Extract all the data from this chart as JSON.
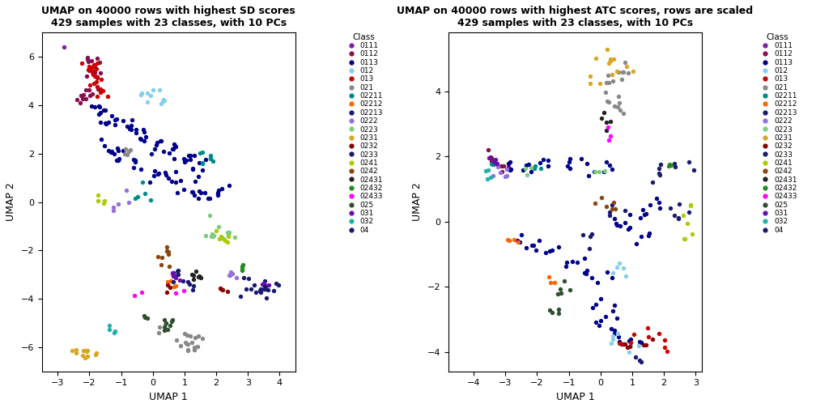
{
  "title1": "UMAP on 40000 rows with highest SD scores\n429 samples with 23 classes, with 10 PCs",
  "title2": "UMAP on 40000 rows with highest ATC scores, rows are scaled\n429 samples with 23 classes, with 10 PCs",
  "xlabel": "UMAP 1",
  "ylabel": "UMAP 2",
  "legend_title": "Class",
  "classes": [
    "0111",
    "0112",
    "0113",
    "012",
    "013",
    "021",
    "02211",
    "02212",
    "02213",
    "0222",
    "0223",
    "0231",
    "0232",
    "0233",
    "0241",
    "0242",
    "02431",
    "02432",
    "02433",
    "025",
    "031",
    "032",
    "04"
  ],
  "color_map": {
    "0111": "#7B1FA2",
    "0112": "#880E4F",
    "0113": "#00008B",
    "012": "#87CEEB",
    "013": "#CC0000",
    "021": "#888888",
    "02211": "#008B8B",
    "02212": "#FF6600",
    "02213": "#1a1a6e",
    "0222": "#9370DB",
    "0223": "#7CCD7C",
    "0231": "#DAA520",
    "0232": "#8B0000",
    "0233": "#191970",
    "0241": "#AACC00",
    "0242": "#8B4513",
    "02431": "#222222",
    "02432": "#228B22",
    "02433": "#FF00FF",
    "025": "#2F4F2F",
    "031": "#6A0DAD",
    "032": "#20B2AA",
    "04": "#191970"
  },
  "point_size": 15,
  "plot1_xlim": [
    -3.5,
    4.5
  ],
  "plot1_ylim": [
    -7.0,
    7.0
  ],
  "plot2_xlim": [
    -4.8,
    3.2
  ],
  "plot2_ylim": [
    -4.6,
    5.8
  ]
}
